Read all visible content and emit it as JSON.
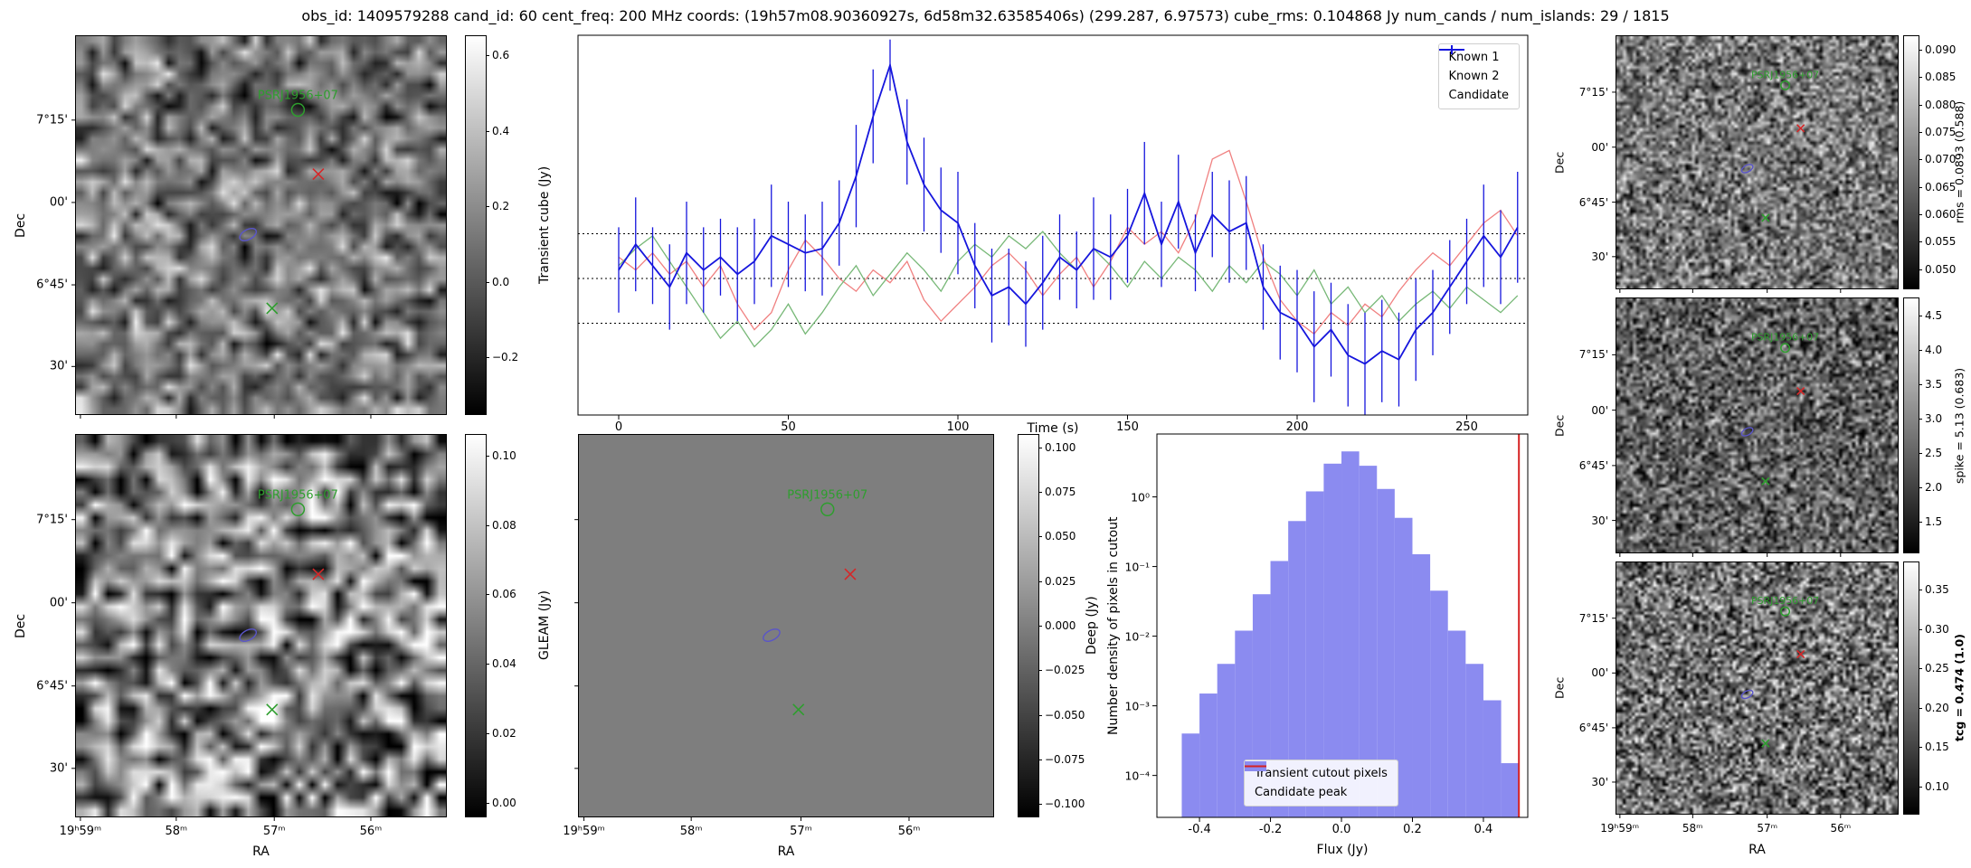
{
  "title": "obs_id: 1409579288 cand_id: 60 cent_freq: 200 MHz coords: (19h57m08.90360927s, 6d58m32.63585406s) (299.287, 6.97573) cube_rms: 0.104868 Jy num_cands / num_islands: 29 / 1815",
  "sky_axes": {
    "dec_label": "Dec",
    "ra_label": "RA",
    "dec_ticks": [
      {
        "label": "7°15'",
        "f": 0.222
      },
      {
        "label": "00'",
        "f": 0.44
      },
      {
        "label": "6°45'",
        "f": 0.658
      },
      {
        "label": "30'",
        "f": 0.874
      }
    ],
    "ra_ticks": [
      {
        "label": "19ʰ59ᵐ",
        "f": 0.012
      },
      {
        "label": "58ᵐ",
        "f": 0.271
      },
      {
        "label": "57ᵐ",
        "f": 0.536
      },
      {
        "label": "56ᵐ",
        "f": 0.797
      }
    ]
  },
  "markers": {
    "label": "PSRJ1956+07",
    "items": [
      {
        "type": "circle",
        "color": "#2e9e2e",
        "fx": 0.6,
        "fy": 0.195,
        "labelled": true
      },
      {
        "type": "x",
        "color": "#d62728",
        "fx": 0.655,
        "fy": 0.365
      },
      {
        "type": "ellipse",
        "color": "#5a55c8",
        "fx": 0.465,
        "fy": 0.525
      },
      {
        "type": "x",
        "color": "#2e9e2e",
        "fx": 0.53,
        "fy": 0.72
      }
    ]
  },
  "colorbars": {
    "transient": {
      "label": "Transient cube (Jy)",
      "vmin": -0.35,
      "vmax": 0.65,
      "ticks": [
        {
          "v": 0.6,
          "t": "0.6"
        },
        {
          "v": 0.4,
          "t": "0.4"
        },
        {
          "v": 0.2,
          "t": "0.2"
        },
        {
          "v": 0.0,
          "t": "0.0"
        },
        {
          "v": -0.2,
          "t": "−0.2"
        }
      ]
    },
    "gleam": {
      "label": "GLEAM (Jy)",
      "vmin": -0.004,
      "vmax": 0.106,
      "ticks": [
        {
          "v": 0.1,
          "t": "0.10"
        },
        {
          "v": 0.08,
          "t": "0.08"
        },
        {
          "v": 0.06,
          "t": "0.06"
        },
        {
          "v": 0.04,
          "t": "0.04"
        },
        {
          "v": 0.02,
          "t": "0.02"
        },
        {
          "v": 0.0,
          "t": "0.00"
        }
      ]
    },
    "deep": {
      "label": "Deep (Jy)",
      "vmin": -0.107,
      "vmax": 0.107,
      "ticks": [
        {
          "v": 0.1,
          "t": "0.100"
        },
        {
          "v": 0.075,
          "t": "0.075"
        },
        {
          "v": 0.05,
          "t": "0.050"
        },
        {
          "v": 0.025,
          "t": "0.025"
        },
        {
          "v": 0.0,
          "t": "0.000"
        },
        {
          "v": -0.025,
          "t": "−0.025"
        },
        {
          "v": -0.05,
          "t": "−0.050"
        },
        {
          "v": -0.075,
          "t": "−0.075"
        },
        {
          "v": -0.1,
          "t": "−0.100"
        }
      ]
    },
    "rms": {
      "label": "rms = 0.0893 (0.588)",
      "vmin": 0.0465,
      "vmax": 0.0925,
      "ticks": [
        {
          "v": 0.09,
          "t": "0.090"
        },
        {
          "v": 0.085,
          "t": "0.085"
        },
        {
          "v": 0.08,
          "t": "0.080"
        },
        {
          "v": 0.075,
          "t": "0.075"
        },
        {
          "v": 0.07,
          "t": "0.070"
        },
        {
          "v": 0.065,
          "t": "0.065"
        },
        {
          "v": 0.06,
          "t": "0.060"
        },
        {
          "v": 0.055,
          "t": "0.055"
        },
        {
          "v": 0.05,
          "t": "0.050"
        }
      ]
    },
    "spike": {
      "label": "spike = 5.13 (0.683)",
      "vmin": 1.05,
      "vmax": 4.75,
      "ticks": [
        {
          "v": 4.5,
          "t": "4.5"
        },
        {
          "v": 4.0,
          "t": "4.0"
        },
        {
          "v": 3.5,
          "t": "3.5"
        },
        {
          "v": 3.0,
          "t": "3.0"
        },
        {
          "v": 2.5,
          "t": "2.5"
        },
        {
          "v": 2.0,
          "t": "2.0"
        },
        {
          "v": 1.5,
          "t": "1.5"
        }
      ]
    },
    "tcg": {
      "label": "tcg = 0.474 (1.0)",
      "bold": true,
      "vmin": 0.065,
      "vmax": 0.385,
      "ticks": [
        {
          "v": 0.35,
          "t": "0.35"
        },
        {
          "v": 0.3,
          "t": "0.30"
        },
        {
          "v": 0.25,
          "t": "0.25"
        },
        {
          "v": 0.2,
          "t": "0.20"
        },
        {
          "v": 0.15,
          "t": "0.15"
        },
        {
          "v": 0.1,
          "t": "0.10"
        }
      ]
    }
  },
  "render_hints": {
    "transient": {
      "seed": 11,
      "grid": 34,
      "mean": 0.47,
      "amp": 0.5
    },
    "gleam": {
      "seed": 22,
      "grid": 29,
      "mean": 0.5,
      "amp": 0.85
    },
    "deep_flat_color": "#7e7e7e",
    "rms": {
      "seed": 33,
      "grid": 86,
      "mean": 0.46,
      "amp": 0.55
    },
    "spike": {
      "seed": 44,
      "grid": 86,
      "mean": 0.38,
      "amp": 0.55
    },
    "tcg": {
      "seed": 55,
      "grid": 92,
      "mean": 0.44,
      "amp": 0.65
    }
  },
  "chart_data": [
    {
      "type": "line",
      "title": "",
      "xlabel": "Time (s)",
      "ylabel": "",
      "xlim": [
        -12,
        268
      ],
      "ylim": [
        -0.32,
        0.57
      ],
      "xticks": [
        0,
        50,
        100,
        150,
        200,
        250
      ],
      "hlines": [
        0.1049,
        0,
        -0.1049
      ],
      "legend_position": "upper right",
      "x": [
        0,
        5,
        10,
        15,
        20,
        25,
        30,
        35,
        40,
        45,
        50,
        55,
        60,
        65,
        70,
        75,
        80,
        85,
        90,
        95,
        100,
        105,
        110,
        115,
        120,
        125,
        130,
        135,
        140,
        145,
        150,
        155,
        160,
        165,
        170,
        175,
        180,
        185,
        190,
        195,
        200,
        205,
        210,
        215,
        220,
        225,
        230,
        235,
        240,
        245,
        250,
        255,
        260,
        265
      ],
      "series": [
        {
          "name": "Known 1",
          "color": "#f08080",
          "values": [
            0.05,
            0.02,
            0.06,
            0.01,
            0.04,
            -0.02,
            0.03,
            -0.06,
            -0.12,
            -0.08,
            0.02,
            0.09,
            0.05,
            0.0,
            -0.03,
            0.02,
            -0.01,
            0.04,
            -0.05,
            -0.1,
            -0.06,
            -0.02,
            0.03,
            0.06,
            0.02,
            -0.04,
            0.01,
            0.05,
            -0.02,
            0.04,
            0.12,
            0.08,
            0.11,
            0.06,
            0.14,
            0.28,
            0.3,
            0.18,
            0.05,
            -0.05,
            -0.1,
            -0.13,
            -0.08,
            -0.11,
            -0.06,
            -0.09,
            -0.03,
            0.02,
            0.06,
            0.03,
            0.08,
            0.13,
            0.16,
            0.1
          ]
        },
        {
          "name": "Known 2",
          "color": "#77b877",
          "values": [
            0.03,
            0.07,
            0.1,
            0.04,
            -0.02,
            -0.08,
            -0.14,
            -0.1,
            -0.16,
            -0.12,
            -0.06,
            -0.13,
            -0.08,
            -0.02,
            0.03,
            -0.04,
            0.01,
            0.06,
            0.02,
            -0.03,
            0.04,
            0.08,
            0.05,
            0.1,
            0.07,
            0.11,
            0.06,
            0.02,
            0.07,
            0.03,
            -0.02,
            0.04,
            0.0,
            0.05,
            0.02,
            -0.03,
            0.03,
            -0.01,
            0.04,
            0.01,
            -0.04,
            0.02,
            -0.06,
            -0.02,
            -0.08,
            -0.04,
            -0.1,
            -0.06,
            -0.03,
            -0.07,
            -0.02,
            -0.05,
            -0.08,
            -0.04
          ]
        },
        {
          "name": "Candidate",
          "color": "#1616dd",
          "values": [
            0.02,
            0.08,
            0.03,
            -0.02,
            0.06,
            0.02,
            0.05,
            0.01,
            0.04,
            0.1,
            0.08,
            0.06,
            0.07,
            0.13,
            0.24,
            0.38,
            0.5,
            0.32,
            0.22,
            0.16,
            0.13,
            0.03,
            -0.04,
            -0.02,
            -0.06,
            -0.01,
            0.05,
            0.02,
            0.07,
            0.05,
            0.1,
            0.2,
            0.08,
            0.18,
            0.06,
            0.15,
            0.11,
            0.13,
            -0.02,
            -0.08,
            -0.1,
            -0.16,
            -0.12,
            -0.18,
            -0.2,
            -0.17,
            -0.19,
            -0.12,
            -0.08,
            -0.02,
            0.04,
            0.1,
            0.05,
            0.12
          ],
          "errors": [
            0.1,
            0.11,
            0.09,
            0.1,
            0.12,
            0.1,
            0.09,
            0.11,
            0.1,
            0.12,
            0.1,
            0.09,
            0.11,
            0.1,
            0.12,
            0.11,
            0.06,
            0.1,
            0.11,
            0.1,
            0.12,
            0.1,
            0.11,
            0.09,
            0.1,
            0.11,
            0.1,
            0.09,
            0.12,
            0.1,
            0.11,
            0.12,
            0.1,
            0.11,
            0.09,
            0.1,
            0.12,
            0.11,
            0.1,
            0.11,
            0.12,
            0.13,
            0.11,
            0.12,
            0.12,
            0.12,
            0.11,
            0.12,
            0.1,
            0.11,
            0.1,
            0.12,
            0.11,
            0.13
          ]
        }
      ]
    },
    {
      "type": "bar",
      "title": "",
      "xlabel": "Flux (Jy)",
      "ylabel": "Number density of pixels in cutout",
      "xlim": [
        -0.52,
        0.525
      ],
      "ylog": true,
      "ylim": [
        2.5e-05,
        8
      ],
      "xticks": [
        -0.4,
        -0.2,
        0.0,
        0.2,
        0.4
      ],
      "yticks": [
        {
          "v": 1,
          "label": "10⁰"
        },
        {
          "v": 0.1,
          "label": "10⁻¹"
        },
        {
          "v": 0.01,
          "label": "10⁻²"
        },
        {
          "v": 0.001,
          "label": "10⁻³"
        },
        {
          "v": 0.0001,
          "label": "10⁻⁴"
        }
      ],
      "bar_color": "#8b8bf0",
      "bin_width": 0.05,
      "bins": [
        {
          "x": -0.45,
          "h": 0.0004
        },
        {
          "x": -0.4,
          "h": 0.0015
        },
        {
          "x": -0.35,
          "h": 0.004
        },
        {
          "x": -0.3,
          "h": 0.012
        },
        {
          "x": -0.25,
          "h": 0.04
        },
        {
          "x": -0.2,
          "h": 0.12
        },
        {
          "x": -0.15,
          "h": 0.45
        },
        {
          "x": -0.1,
          "h": 1.2
        },
        {
          "x": -0.05,
          "h": 3.0
        },
        {
          "x": 0.0,
          "h": 4.5
        },
        {
          "x": 0.05,
          "h": 2.8
        },
        {
          "x": 0.1,
          "h": 1.3
        },
        {
          "x": 0.15,
          "h": 0.5
        },
        {
          "x": 0.2,
          "h": 0.15
        },
        {
          "x": 0.25,
          "h": 0.045
        },
        {
          "x": 0.3,
          "h": 0.012
        },
        {
          "x": 0.35,
          "h": 0.004
        },
        {
          "x": 0.4,
          "h": 0.0012
        },
        {
          "x": 0.45,
          "h": 0.00015
        }
      ],
      "vline": {
        "x": 0.5,
        "color": "#d62222",
        "label": "Candidate peak"
      },
      "legend": [
        {
          "label": "Transient cutout pixels",
          "type": "patch",
          "color": "#8b8bf0"
        },
        {
          "label": "Candidate peak",
          "type": "line",
          "color": "#d62222"
        }
      ]
    }
  ]
}
